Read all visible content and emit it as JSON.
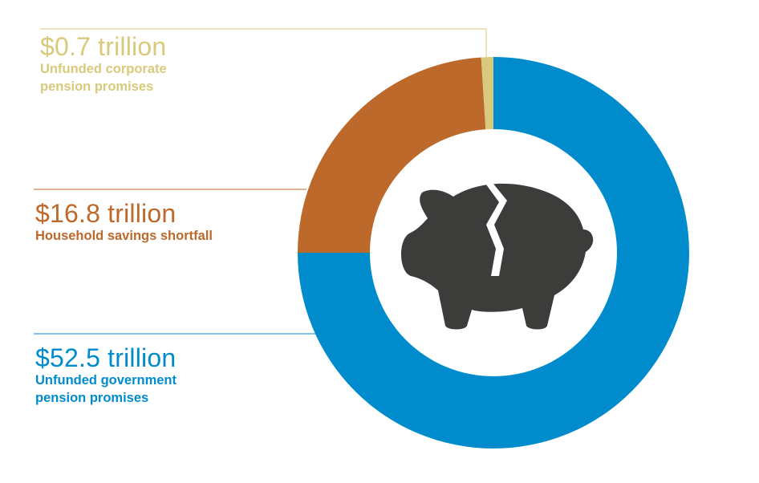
{
  "chart_data": {
    "type": "pie",
    "variant": "donut",
    "series": [
      {
        "value_text": "$52.5 trillion",
        "value": 52.5,
        "desc_line1": "Unfunded government",
        "desc_line2": "pension promises",
        "color": "#008ccc"
      },
      {
        "value_text": "$16.8 trillion",
        "value": 16.8,
        "desc_line1": "Household savings shortfall",
        "desc_line2": "",
        "color": "#bd692b"
      },
      {
        "value_text": "$0.7 trillion",
        "value": 0.7,
        "desc_line1": "Unfunded corporate",
        "desc_line2": "pension promises",
        "color": "#d8ca7a"
      }
    ],
    "center_icon": "broken-piggy-bank-icon",
    "icon_color": "#3c3c3b"
  }
}
